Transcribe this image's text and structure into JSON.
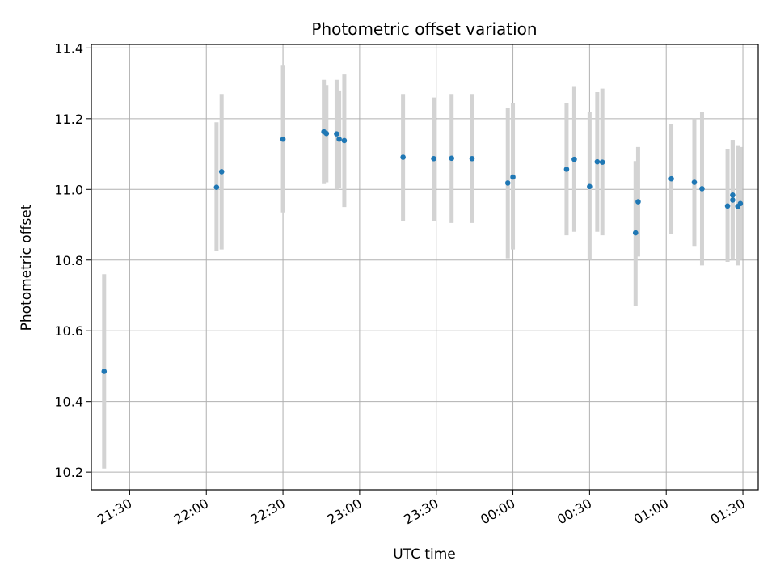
{
  "chart_data": {
    "type": "scatter",
    "title": "Photometric offset variation",
    "xlabel": "UTC time",
    "ylabel": "Photometric offset",
    "x_ticks": [
      "21:30",
      "22:00",
      "22:30",
      "23:00",
      "23:30",
      "00:00",
      "00:30",
      "01:00",
      "01:30"
    ],
    "y_ticks": [
      "10.2",
      "10.4",
      "10.6",
      "10.8",
      "11.0",
      "11.2",
      "11.4"
    ],
    "xlim": [
      "21:15",
      "01:36"
    ],
    "ylim": [
      10.15,
      11.41
    ],
    "grid": true,
    "colors": {
      "marker": "#1f77b4",
      "errorbar": "#d3d3d3",
      "grid": "#b0b0b0"
    },
    "series": [
      {
        "points": [
          {
            "x": "21:20",
            "y": 10.485,
            "lo": 10.21,
            "hi": 10.76
          },
          {
            "x": "22:04",
            "y": 11.006,
            "lo": 10.825,
            "hi": 11.19
          },
          {
            "x": "22:06",
            "y": 11.05,
            "lo": 10.83,
            "hi": 11.27
          },
          {
            "x": "22:30",
            "y": 11.142,
            "lo": 10.935,
            "hi": 11.35
          },
          {
            "x": "22:46",
            "y": 11.163,
            "lo": 11.015,
            "hi": 11.31
          },
          {
            "x": "22:47",
            "y": 11.158,
            "lo": 11.02,
            "hi": 11.295
          },
          {
            "x": "22:51",
            "y": 11.157,
            "lo": 11.0,
            "hi": 11.31
          },
          {
            "x": "22:52",
            "y": 11.142,
            "lo": 11.005,
            "hi": 11.28
          },
          {
            "x": "22:54",
            "y": 11.138,
            "lo": 10.95,
            "hi": 11.325
          },
          {
            "x": "23:17",
            "y": 11.091,
            "lo": 10.91,
            "hi": 11.27
          },
          {
            "x": "23:29",
            "y": 11.087,
            "lo": 10.91,
            "hi": 11.26
          },
          {
            "x": "23:36",
            "y": 11.088,
            "lo": 10.905,
            "hi": 11.27
          },
          {
            "x": "23:44",
            "y": 11.087,
            "lo": 10.905,
            "hi": 11.27
          },
          {
            "x": "23:58",
            "y": 11.018,
            "lo": 10.805,
            "hi": 11.23
          },
          {
            "x": "00:00",
            "y": 11.035,
            "lo": 10.83,
            "hi": 11.245
          },
          {
            "x": "00:21",
            "y": 11.057,
            "lo": 10.87,
            "hi": 11.245
          },
          {
            "x": "00:24",
            "y": 11.085,
            "lo": 10.88,
            "hi": 11.29
          },
          {
            "x": "00:30",
            "y": 11.008,
            "lo": 10.8,
            "hi": 11.22
          },
          {
            "x": "00:33",
            "y": 11.078,
            "lo": 10.88,
            "hi": 11.275
          },
          {
            "x": "00:35",
            "y": 11.077,
            "lo": 10.87,
            "hi": 11.285
          },
          {
            "x": "00:48",
            "y": 10.877,
            "lo": 10.67,
            "hi": 11.08
          },
          {
            "x": "00:49",
            "y": 10.965,
            "lo": 10.81,
            "hi": 11.12
          },
          {
            "x": "01:02",
            "y": 11.03,
            "lo": 10.875,
            "hi": 11.185
          },
          {
            "x": "01:11",
            "y": 11.02,
            "lo": 10.84,
            "hi": 11.2
          },
          {
            "x": "01:14",
            "y": 11.002,
            "lo": 10.785,
            "hi": 11.22
          },
          {
            "x": "01:24",
            "y": 10.953,
            "lo": 10.795,
            "hi": 11.115
          },
          {
            "x": "01:26",
            "y": 10.984,
            "lo": 10.8,
            "hi": 11.14
          },
          {
            "x": "01:26",
            "y": 10.97,
            "lo": 10.81,
            "hi": 11.14
          },
          {
            "x": "01:28",
            "y": 10.952,
            "lo": 10.785,
            "hi": 11.125
          },
          {
            "x": "01:29",
            "y": 10.96,
            "lo": 10.8,
            "hi": 11.12
          }
        ]
      }
    ]
  }
}
